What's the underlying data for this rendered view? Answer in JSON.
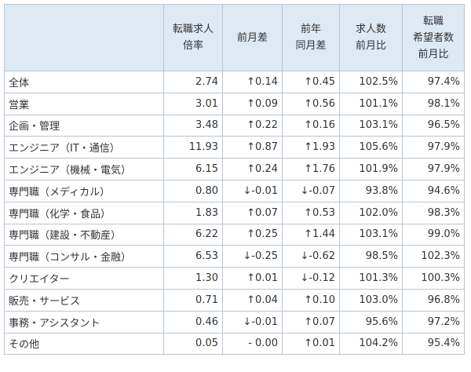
{
  "headers": [
    {
      "lines": [
        ""
      ]
    },
    {
      "lines": [
        "転職求人",
        "倍率"
      ]
    },
    {
      "lines": [
        "前月差"
      ]
    },
    {
      "lines": [
        "前年",
        "同月差"
      ]
    },
    {
      "lines": [
        "求人数",
        "前月比"
      ]
    },
    {
      "lines": [
        "転職",
        "希望者数",
        "前月比"
      ]
    }
  ],
  "rows": [
    [
      "全体",
      "2.74",
      "↑0.14",
      "↑0.45",
      "102.5%",
      "97.4%"
    ],
    [
      "営業",
      "3.01",
      "↑0.09",
      "↑0.56",
      "101.1%",
      "98.1%"
    ],
    [
      "企画・管理",
      "3.48",
      "↑0.22",
      "↑0.16",
      "103.1%",
      "96.5%"
    ],
    [
      "エンジニア（IT・通信）",
      "11.93",
      "↑0.87",
      "↑1.93",
      "105.6%",
      "97.9%"
    ],
    [
      "エンジニア（機械・電気）",
      "6.15",
      "↑0.24",
      "↑1.76",
      "101.9%",
      "97.9%"
    ],
    [
      "専門職（メディカル）",
      "0.80",
      "↓-0.01",
      "↓-0.07",
      "93.8%",
      "94.6%"
    ],
    [
      "専門職（化学・食品）",
      "1.83",
      "↑0.07",
      "↑0.53",
      "102.0%",
      "98.3%"
    ],
    [
      "専門職（建設・不動産）",
      "6.22",
      "↑0.25",
      "↑1.44",
      "103.1%",
      "99.0%"
    ],
    [
      "専門職（コンサル・金融）",
      "6.53",
      "↓-0.25",
      "↓-0.62",
      "98.5%",
      "102.3%"
    ],
    [
      "クリエイター",
      "1.30",
      "↑0.01",
      "↓-0.12",
      "101.3%",
      "100.3%"
    ],
    [
      "販売・サービス",
      "0.71",
      "↑0.04",
      "↑0.10",
      "103.0%",
      "96.8%"
    ],
    [
      "事務・アシスタント",
      "0.46",
      "↓-0.01",
      "↑0.07",
      "95.6%",
      "97.2%"
    ],
    [
      "その他",
      "0.05",
      "- 0.00",
      "↑0.01",
      "104.2%",
      "95.4%"
    ]
  ]
}
